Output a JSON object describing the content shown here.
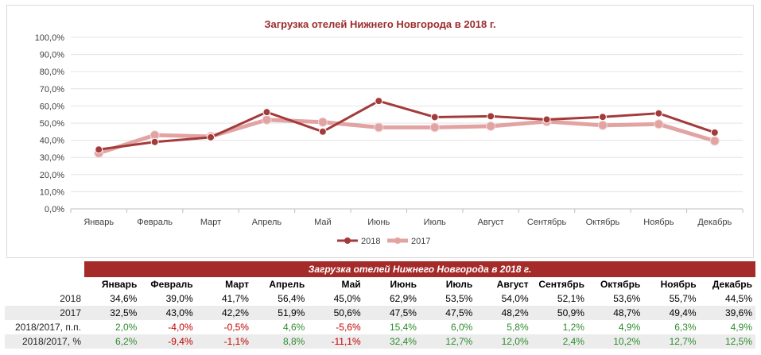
{
  "chart_data": {
    "type": "line",
    "title": "Загрузка отелей Нижнего Новгорода в 2018 г.",
    "categories": [
      "Январь",
      "Февраль",
      "Март",
      "Апрель",
      "Май",
      "Июнь",
      "Июль",
      "Август",
      "Сентябрь",
      "Октябрь",
      "Ноябрь",
      "Декабрь"
    ],
    "series": [
      {
        "name": "2018",
        "values": [
          34.6,
          39.0,
          41.7,
          56.4,
          45.0,
          62.9,
          53.5,
          54.0,
          52.1,
          53.6,
          55.7,
          44.5
        ],
        "color": "#a33b3b"
      },
      {
        "name": "2017",
        "values": [
          32.5,
          43.0,
          42.2,
          51.9,
          50.6,
          47.5,
          47.5,
          48.2,
          50.9,
          48.7,
          49.4,
          39.6
        ],
        "color": "#e2a3a3"
      }
    ],
    "y_ticks": [
      "0,0%",
      "10,0%",
      "20,0%",
      "30,0%",
      "40,0%",
      "50,0%",
      "60,0%",
      "70,0%",
      "80,0%",
      "90,0%",
      "100,0%"
    ],
    "ylim": [
      0,
      100
    ],
    "grid": true,
    "legend": "bottom",
    "xlabel": "",
    "ylabel": ""
  },
  "table": {
    "title": "Загрузка отелей Нижнего Новгорода в 2018 г.",
    "headers": [
      "Январь",
      "Февраль",
      "Март",
      "Апрель",
      "Май",
      "Июнь",
      "Июль",
      "Август",
      "Сентябрь",
      "Октябрь",
      "Ноябрь",
      "Декабрь"
    ],
    "rows": [
      {
        "label": "2018",
        "cells": [
          "34,6%",
          "39,0%",
          "41,7%",
          "56,4%",
          "45,0%",
          "62,9%",
          "53,5%",
          "54,0%",
          "52,1%",
          "53,6%",
          "55,7%",
          "44,5%"
        ]
      },
      {
        "label": "2017",
        "cells": [
          "32,5%",
          "43,0%",
          "42,2%",
          "51,9%",
          "50,6%",
          "47,5%",
          "47,5%",
          "48,2%",
          "50,9%",
          "48,7%",
          "49,4%",
          "39,6%"
        ]
      },
      {
        "label": "2018/2017, п.п.",
        "cells": [
          "2,0%",
          "-4,0%",
          "-0,5%",
          "4,6%",
          "-5,6%",
          "15,4%",
          "6,0%",
          "5,8%",
          "1,2%",
          "4,9%",
          "6,3%",
          "4,9%"
        ]
      },
      {
        "label": "2018/2017, %",
        "cells": [
          "6,2%",
          "-9,4%",
          "-1,1%",
          "8,8%",
          "-11,1%",
          "32,4%",
          "12,7%",
          "12,0%",
          "2,4%",
          "10,2%",
          "12,7%",
          "12,5%"
        ]
      }
    ]
  }
}
